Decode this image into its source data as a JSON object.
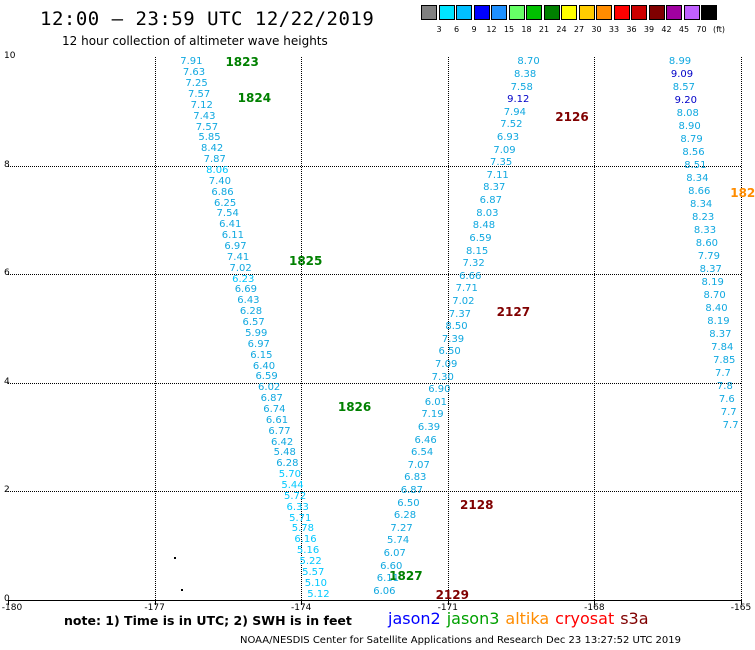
{
  "header": {
    "title": "12:00 – 23:59 UTC 12/22/2019",
    "subtitle": "12 hour collection of altimeter wave heights"
  },
  "color_scale": {
    "labels": [
      "3",
      "6",
      "9",
      "12",
      "15",
      "18",
      "21",
      "24",
      "27",
      "30",
      "33",
      "36",
      "39",
      "42",
      "45",
      "70",
      "(ft)"
    ],
    "colors": [
      "#808080",
      "#00e5ff",
      "#00bfff",
      "#0000ff",
      "#1e90ff",
      "#66ff66",
      "#00c000",
      "#008000",
      "#ffff00",
      "#ffcc00",
      "#ff8c00",
      "#ff0000",
      "#cc0000",
      "#800000",
      "#a000a0",
      "#c060ff",
      "#000000"
    ]
  },
  "axes": {
    "x_ticks": [
      "-180",
      "-177",
      "-174",
      "-171",
      "-168",
      "-165"
    ],
    "y_ticks": [
      "0",
      "2",
      "4",
      "6",
      "8",
      "10"
    ]
  },
  "map_data": {
    "x_range": [
      -180,
      -165
    ],
    "y_range": [
      0,
      10
    ],
    "tracks": [
      {
        "color": "#10a8e0",
        "start": [
          -176.25,
          9.9
        ],
        "end": [
          -173.65,
          0.1
        ],
        "values": [
          "7.91",
          "7.63",
          "7.25",
          "7.57",
          "7.12",
          "7.43",
          "7.57",
          "5.85",
          "8.42",
          "7.87",
          "8.06",
          "7.40",
          "6.86",
          "6.25",
          "7.54",
          "6.41",
          "6.11",
          "6.97",
          "7.41",
          "7.02",
          "6.23",
          "6.69",
          "6.43",
          "6.28",
          "6.57",
          "5.99",
          "6.97",
          "6.15",
          "6.40",
          "6.59",
          "6.02",
          "6.87",
          "6.74",
          "6.61",
          "6.77",
          "6.42",
          "5.48",
          "6.28",
          "5.70",
          "5.44",
          "5.72",
          "6.33",
          "5.71",
          "5.78",
          "6.16",
          "5.16",
          "5.22",
          "5.57",
          "5.10",
          "5.12"
        ],
        "overrides": [
          {
            "index": 10,
            "color": "#00c8ff"
          },
          {
            "index": 20,
            "color": "#00c8ff"
          },
          {
            "index": 38,
            "color": "#00c8ff"
          },
          {
            "index": 39,
            "color": "#00c8ff"
          },
          {
            "index": 40,
            "color": "#00c8ff"
          },
          {
            "index": 41,
            "color": "#00c8ff"
          },
          {
            "index": 42,
            "color": "#00c8ff"
          },
          {
            "index": 43,
            "color": "#00c8ff"
          },
          {
            "index": 44,
            "color": "#00c8ff"
          },
          {
            "index": 45,
            "color": "#00c8ff"
          },
          {
            "index": 46,
            "color": "#00c8ff"
          },
          {
            "index": 47,
            "color": "#00c8ff"
          },
          {
            "index": 48,
            "color": "#00c8ff"
          },
          {
            "index": 49,
            "color": "#00c8ff"
          }
        ],
        "hours": [
          {
            "label": "1823",
            "x": -175.55,
            "y": 9.9,
            "color": "#008000"
          },
          {
            "label": "1824",
            "x": -175.3,
            "y": 9.25,
            "color": "#008000"
          },
          {
            "label": "1825",
            "x": -174.25,
            "y": 6.25,
            "color": "#008000"
          },
          {
            "label": "1826",
            "x": -173.25,
            "y": 3.55,
            "color": "#008000"
          },
          {
            "label": "1827",
            "x": -172.2,
            "y": 0.45,
            "color": "#008000"
          }
        ]
      },
      {
        "color": "#10a8e0",
        "start": [
          -169.35,
          9.9
        ],
        "end": [
          -172.3,
          0.15
        ],
        "values": [
          "8.70",
          "8.38",
          "7.58",
          "9.12",
          "7.94",
          "7.52",
          "6.93",
          "7.09",
          "7.35",
          "7.11",
          "8.37",
          "6.87",
          "8.03",
          "8.48",
          "6.59",
          "8.15",
          "7.32",
          "6.66",
          "7.71",
          "7.02",
          "7.37",
          "8.50",
          "7.39",
          "6.50",
          "7.09",
          "7.30",
          "6.90",
          "6.01",
          "7.19",
          "6.39",
          "6.46",
          "6.54",
          "7.07",
          "6.83",
          "6.87",
          "6.50",
          "6.28",
          "7.27",
          "5.74",
          "6.07",
          "6.60",
          "6.11",
          "6.06"
        ],
        "overrides": [
          {
            "index": 3,
            "color": "#0000c8"
          }
        ],
        "hours": [
          {
            "label": "2126",
            "x": -168.8,
            "y": 8.9,
            "color": "#800000"
          },
          {
            "label": "2127",
            "x": -170.0,
            "y": 5.3,
            "color": "#800000"
          },
          {
            "label": "2128",
            "x": -170.75,
            "y": 1.75,
            "color": "#800000"
          },
          {
            "label": "2129",
            "x": -171.25,
            "y": 0.1,
            "color": "#800000"
          }
        ]
      },
      {
        "color": "#10a8e0",
        "start": [
          -166.25,
          9.9
        ],
        "end": [
          -165.15,
          3.2
        ],
        "values": [
          "8.99",
          "9.09",
          "8.57",
          "9.20",
          "8.08",
          "8.90",
          "8.79",
          "8.56",
          "8.51",
          "8.34",
          "8.66",
          "8.34",
          "8.23",
          "8.33",
          "8.60",
          "7.79",
          "8.37",
          "8.19",
          "8.70",
          "8.40",
          "8.19",
          "8.37",
          "7.84",
          "7.85",
          "7.7",
          "7.8",
          "7.6",
          "7.7",
          "7.7"
        ],
        "overrides": [
          {
            "index": 1,
            "color": "#0000c8"
          },
          {
            "index": 3,
            "color": "#0000c8"
          }
        ],
        "hours": [
          {
            "label": "182",
            "x": -165.22,
            "y": 7.5,
            "color": "#ff8c00"
          }
        ]
      }
    ],
    "dots": [
      [
        -176.6,
        0.8
      ],
      [
        -176.45,
        0.2
      ]
    ]
  },
  "note": "note: 1) Time is in UTC; 2) SWH is in feet",
  "legend": [
    {
      "label": "jason2",
      "color": "#0000ff"
    },
    {
      "label": "jason3",
      "color": "#00a000"
    },
    {
      "label": "altika",
      "color": "#ff8c00"
    },
    {
      "label": "cryosat",
      "color": "#ff0000"
    },
    {
      "label": "s3a",
      "color": "#800000"
    }
  ],
  "footer": "NOAA/NESDIS Center for Satellite Applications and Research    Dec 23 13:27:52 UTC 2019"
}
